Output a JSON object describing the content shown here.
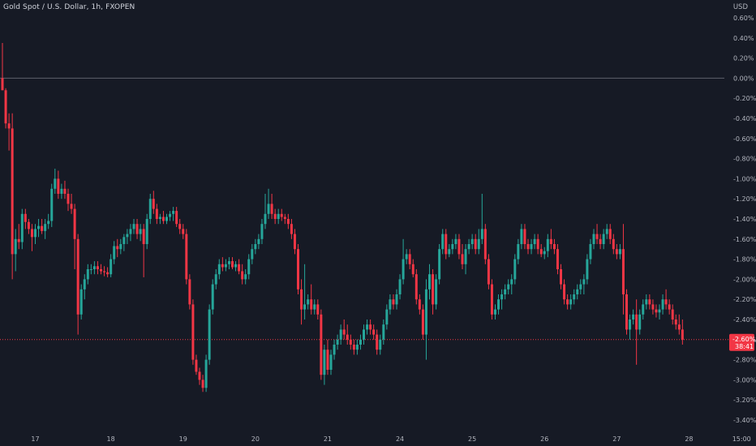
{
  "header": {
    "title": "Gold Spot / U.S. Dollar, 1h, FXOPEN",
    "currency": "USD"
  },
  "colors": {
    "background": "#161a25",
    "up": "#26a69a",
    "down": "#f23645",
    "text": "#b2b5be",
    "zero_line": "#5d606b",
    "price_line": "#f23645",
    "badge": "#f23645",
    "badge_text": "#ffffff"
  },
  "current": {
    "value_label": "-2.60%",
    "countdown": "38:41",
    "value": -2.6
  },
  "chart_data": {
    "type": "candlestick",
    "y_unit": "percent change",
    "ylim": [
      -3.5,
      0.65
    ],
    "y_scale": "linear",
    "grid": false,
    "ytick_labels": [
      "0.60%",
      "0.40%",
      "0.20%",
      "0.00%",
      "-0.20%",
      "-0.40%",
      "-0.60%",
      "-0.80%",
      "-1.00%",
      "-1.20%",
      "-1.40%",
      "-1.60%",
      "-1.80%",
      "-2.00%",
      "-2.20%",
      "-2.40%",
      "-2.60%",
      "-2.80%",
      "-3.00%",
      "-3.20%",
      "-3.40%"
    ],
    "ytick_values": [
      0.6,
      0.4,
      0.2,
      0,
      -0.2,
      -0.4,
      -0.6,
      -0.8,
      -1.0,
      -1.2,
      -1.4,
      -1.6,
      -1.8,
      -2.0,
      -2.2,
      -2.4,
      -2.6,
      -2.8,
      -3.0,
      -3.2,
      -3.4
    ],
    "xtick_labels": [
      "17",
      "18",
      "19",
      "20",
      "21",
      "24",
      "25",
      "26",
      "27",
      "28",
      "15:00"
    ],
    "xtick_index": [
      10,
      33,
      55,
      77,
      99,
      121,
      143,
      165,
      187,
      209,
      225
    ],
    "reference_lines": [
      {
        "name": "zero",
        "value": 0.0
      },
      {
        "name": "last-price",
        "value": -2.6
      }
    ],
    "candles": [
      [
        0.0,
        0.35,
        -0.12,
        -0.12
      ],
      [
        -0.12,
        -0.1,
        -0.5,
        -0.45
      ],
      [
        -0.45,
        -0.35,
        -0.72,
        -0.5
      ],
      [
        -0.5,
        -0.35,
        -2.0,
        -1.75
      ],
      [
        -1.75,
        -1.5,
        -1.92,
        -1.6
      ],
      [
        -1.6,
        -1.45,
        -1.7,
        -1.63
      ],
      [
        -1.63,
        -1.3,
        -1.7,
        -1.35
      ],
      [
        -1.35,
        -1.3,
        -1.5,
        -1.43
      ],
      [
        -1.43,
        -1.4,
        -1.55,
        -1.5
      ],
      [
        -1.5,
        -1.45,
        -1.72,
        -1.58
      ],
      [
        -1.58,
        -1.45,
        -1.65,
        -1.5
      ],
      [
        -1.5,
        -1.4,
        -1.58,
        -1.47
      ],
      [
        -1.47,
        -1.4,
        -1.55,
        -1.52
      ],
      [
        -1.52,
        -1.4,
        -1.6,
        -1.45
      ],
      [
        -1.45,
        -1.35,
        -1.5,
        -1.42
      ],
      [
        -1.42,
        -1.05,
        -1.48,
        -1.1
      ],
      [
        -1.1,
        -0.9,
        -1.15,
        -1.0
      ],
      [
        -1.0,
        -0.92,
        -1.2,
        -1.15
      ],
      [
        -1.15,
        -1.05,
        -1.2,
        -1.1
      ],
      [
        -1.1,
        -1.02,
        -1.2,
        -1.15
      ],
      [
        -1.15,
        -1.1,
        -1.32,
        -1.25
      ],
      [
        -1.25,
        -1.15,
        -1.35,
        -1.3
      ],
      [
        -1.3,
        -1.25,
        -1.9,
        -1.6
      ],
      [
        -1.6,
        -1.55,
        -2.55,
        -2.35
      ],
      [
        -2.35,
        -2.05,
        -2.4,
        -2.1
      ],
      [
        -2.1,
        -1.95,
        -2.2,
        -2.0
      ],
      [
        -2.0,
        -1.85,
        -2.05,
        -1.9
      ],
      [
        -1.9,
        -1.85,
        -1.95,
        -1.9
      ],
      [
        -1.9,
        -1.82,
        -1.95,
        -1.87
      ],
      [
        -1.87,
        -1.82,
        -1.95,
        -1.9
      ],
      [
        -1.9,
        -1.85,
        -1.95,
        -1.92
      ],
      [
        -1.92,
        -1.87,
        -1.97,
        -1.93
      ],
      [
        -1.93,
        -1.88,
        -1.98,
        -1.95
      ],
      [
        -1.95,
        -1.75,
        -1.98,
        -1.8
      ],
      [
        -1.8,
        -1.62,
        -1.85,
        -1.67
      ],
      [
        -1.67,
        -1.6,
        -1.78,
        -1.7
      ],
      [
        -1.7,
        -1.6,
        -1.75,
        -1.65
      ],
      [
        -1.65,
        -1.55,
        -1.72,
        -1.58
      ],
      [
        -1.58,
        -1.5,
        -1.65,
        -1.55
      ],
      [
        -1.55,
        -1.45,
        -1.62,
        -1.5
      ],
      [
        -1.5,
        -1.4,
        -1.55,
        -1.45
      ],
      [
        -1.45,
        -1.4,
        -1.6,
        -1.55
      ],
      [
        -1.55,
        -1.45,
        -1.62,
        -1.5
      ],
      [
        -1.5,
        -1.45,
        -1.98,
        -1.65
      ],
      [
        -1.65,
        -1.35,
        -1.7,
        -1.4
      ],
      [
        -1.4,
        -1.15,
        -1.45,
        -1.2
      ],
      [
        -1.2,
        -1.12,
        -1.35,
        -1.3
      ],
      [
        -1.3,
        -1.25,
        -1.45,
        -1.4
      ],
      [
        -1.4,
        -1.35,
        -1.45,
        -1.38
      ],
      [
        -1.38,
        -1.32,
        -1.45,
        -1.42
      ],
      [
        -1.42,
        -1.35,
        -1.45,
        -1.38
      ],
      [
        -1.38,
        -1.32,
        -1.42,
        -1.35
      ],
      [
        -1.35,
        -1.28,
        -1.42,
        -1.32
      ],
      [
        -1.32,
        -1.28,
        -1.48,
        -1.45
      ],
      [
        -1.45,
        -1.4,
        -1.55,
        -1.5
      ],
      [
        -1.5,
        -1.45,
        -1.6,
        -1.55
      ],
      [
        -1.55,
        -1.5,
        -2.05,
        -2.0
      ],
      [
        -2.0,
        -1.95,
        -2.3,
        -2.25
      ],
      [
        -2.25,
        -2.2,
        -2.85,
        -2.8
      ],
      [
        -2.8,
        -2.75,
        -2.95,
        -2.92
      ],
      [
        -2.92,
        -2.88,
        -3.05,
        -3.0
      ],
      [
        -3.0,
        -2.95,
        -3.12,
        -3.08
      ],
      [
        -3.08,
        -2.75,
        -3.12,
        -2.8
      ],
      [
        -2.8,
        -2.25,
        -2.85,
        -2.3
      ],
      [
        -2.3,
        -2.0,
        -2.35,
        -2.05
      ],
      [
        -2.05,
        -1.9,
        -2.1,
        -1.95
      ],
      [
        -1.95,
        -1.8,
        -2.0,
        -1.85
      ],
      [
        -1.85,
        -1.78,
        -1.92,
        -1.88
      ],
      [
        -1.88,
        -1.8,
        -1.92,
        -1.85
      ],
      [
        -1.85,
        -1.78,
        -1.9,
        -1.82
      ],
      [
        -1.82,
        -1.78,
        -1.9,
        -1.88
      ],
      [
        -1.88,
        -1.82,
        -1.92,
        -1.85
      ],
      [
        -1.85,
        -1.8,
        -1.95,
        -1.92
      ],
      [
        -1.92,
        -1.85,
        -2.05,
        -2.0
      ],
      [
        -2.0,
        -1.9,
        -2.05,
        -1.95
      ],
      [
        -1.95,
        -1.75,
        -2.0,
        -1.8
      ],
      [
        -1.8,
        -1.65,
        -1.85,
        -1.7
      ],
      [
        -1.7,
        -1.6,
        -1.75,
        -1.65
      ],
      [
        -1.65,
        -1.55,
        -1.7,
        -1.6
      ],
      [
        -1.6,
        -1.4,
        -1.65,
        -1.45
      ],
      [
        -1.45,
        -1.15,
        -1.5,
        -1.35
      ],
      [
        -1.35,
        -1.1,
        -1.4,
        -1.25
      ],
      [
        -1.25,
        -1.15,
        -1.4,
        -1.35
      ],
      [
        -1.35,
        -1.3,
        -1.45,
        -1.4
      ],
      [
        -1.4,
        -1.3,
        -1.45,
        -1.35
      ],
      [
        -1.35,
        -1.3,
        -1.42,
        -1.38
      ],
      [
        -1.38,
        -1.35,
        -1.45,
        -1.4
      ],
      [
        -1.4,
        -1.35,
        -1.5,
        -1.45
      ],
      [
        -1.45,
        -1.4,
        -1.6,
        -1.55
      ],
      [
        -1.55,
        -1.5,
        -1.75,
        -1.7
      ],
      [
        -1.7,
        -1.65,
        -2.15,
        -2.1
      ],
      [
        -2.1,
        -2.0,
        -2.45,
        -2.3
      ],
      [
        -2.3,
        -1.85,
        -2.4,
        -2.25
      ],
      [
        -2.25,
        -2.15,
        -2.3,
        -2.2
      ],
      [
        -2.2,
        -2.05,
        -2.35,
        -2.3
      ],
      [
        -2.3,
        -2.2,
        -2.35,
        -2.25
      ],
      [
        -2.25,
        -2.2,
        -2.4,
        -2.35
      ],
      [
        -2.35,
        -2.3,
        -3.0,
        -2.95
      ],
      [
        -2.95,
        -2.65,
        -3.05,
        -2.7
      ],
      [
        -2.7,
        -2.6,
        -2.95,
        -2.9
      ],
      [
        -2.9,
        -2.7,
        -2.95,
        -2.75
      ],
      [
        -2.75,
        -2.6,
        -2.8,
        -2.65
      ],
      [
        -2.65,
        -2.55,
        -2.7,
        -2.6
      ],
      [
        -2.6,
        -2.45,
        -2.65,
        -2.5
      ],
      [
        -2.5,
        -2.4,
        -2.6,
        -2.55
      ],
      [
        -2.55,
        -2.45,
        -2.65,
        -2.6
      ],
      [
        -2.6,
        -2.55,
        -2.7,
        -2.65
      ],
      [
        -2.65,
        -2.6,
        -2.75,
        -2.7
      ],
      [
        -2.7,
        -2.6,
        -2.75,
        -2.65
      ],
      [
        -2.65,
        -2.55,
        -2.7,
        -2.6
      ],
      [
        -2.6,
        -2.45,
        -2.65,
        -2.5
      ],
      [
        -2.5,
        -2.4,
        -2.55,
        -2.45
      ],
      [
        -2.45,
        -2.4,
        -2.55,
        -2.5
      ],
      [
        -2.5,
        -2.45,
        -2.6,
        -2.55
      ],
      [
        -2.55,
        -2.5,
        -2.75,
        -2.7
      ],
      [
        -2.7,
        -2.55,
        -2.75,
        -2.6
      ],
      [
        -2.6,
        -2.4,
        -2.65,
        -2.45
      ],
      [
        -2.45,
        -2.25,
        -2.5,
        -2.3
      ],
      [
        -2.3,
        -2.15,
        -2.35,
        -2.2
      ],
      [
        -2.2,
        -2.15,
        -2.3,
        -2.25
      ],
      [
        -2.25,
        -2.1,
        -2.3,
        -2.15
      ],
      [
        -2.15,
        -1.95,
        -2.2,
        -2.0
      ],
      [
        -2.0,
        -1.6,
        -2.05,
        -1.8
      ],
      [
        -1.8,
        -1.7,
        -1.85,
        -1.75
      ],
      [
        -1.75,
        -1.7,
        -1.9,
        -1.85
      ],
      [
        -1.85,
        -1.8,
        -1.98,
        -1.95
      ],
      [
        -1.95,
        -1.9,
        -2.25,
        -2.2
      ],
      [
        -2.2,
        -2.15,
        -2.35,
        -2.3
      ],
      [
        -2.3,
        -2.25,
        -2.6,
        -2.55
      ],
      [
        -2.55,
        -2.0,
        -2.8,
        -2.1
      ],
      [
        -2.1,
        -1.85,
        -2.2,
        -1.95
      ],
      [
        -1.95,
        -1.9,
        -2.35,
        -2.25
      ],
      [
        -2.25,
        -1.95,
        -2.3,
        -2.0
      ],
      [
        -2.0,
        -1.65,
        -2.05,
        -1.7
      ],
      [
        -1.7,
        -1.5,
        -1.75,
        -1.55
      ],
      [
        -1.55,
        -1.5,
        -1.8,
        -1.75
      ],
      [
        -1.75,
        -1.65,
        -1.78,
        -1.7
      ],
      [
        -1.7,
        -1.6,
        -1.75,
        -1.65
      ],
      [
        -1.65,
        -1.55,
        -1.7,
        -1.6
      ],
      [
        -1.6,
        -1.55,
        -1.8,
        -1.75
      ],
      [
        -1.75,
        -1.65,
        -1.9,
        -1.85
      ],
      [
        -1.85,
        -1.65,
        -1.95,
        -1.7
      ],
      [
        -1.7,
        -1.6,
        -1.75,
        -1.65
      ],
      [
        -1.65,
        -1.55,
        -1.7,
        -1.6
      ],
      [
        -1.6,
        -1.55,
        -1.75,
        -1.7
      ],
      [
        -1.7,
        -1.5,
        -1.75,
        -1.6
      ],
      [
        -1.6,
        -1.15,
        -1.65,
        -1.5
      ],
      [
        -1.5,
        -1.45,
        -1.85,
        -1.8
      ],
      [
        -1.8,
        -1.75,
        -2.1,
        -2.05
      ],
      [
        -2.05,
        -2.0,
        -2.4,
        -2.35
      ],
      [
        -2.35,
        -2.25,
        -2.4,
        -2.3
      ],
      [
        -2.3,
        -2.15,
        -2.35,
        -2.2
      ],
      [
        -2.2,
        -2.1,
        -2.3,
        -2.15
      ],
      [
        -2.15,
        -2.05,
        -2.2,
        -2.1
      ],
      [
        -2.1,
        -2.0,
        -2.15,
        -2.05
      ],
      [
        -2.05,
        -1.95,
        -2.15,
        -2.0
      ],
      [
        -2.0,
        -1.75,
        -2.05,
        -1.8
      ],
      [
        -1.8,
        -1.6,
        -1.85,
        -1.65
      ],
      [
        -1.65,
        -1.45,
        -1.7,
        -1.5
      ],
      [
        -1.5,
        -1.45,
        -1.7,
        -1.65
      ],
      [
        -1.65,
        -1.6,
        -1.75,
        -1.7
      ],
      [
        -1.7,
        -1.6,
        -1.75,
        -1.65
      ],
      [
        -1.65,
        -1.55,
        -1.7,
        -1.6
      ],
      [
        -1.6,
        -1.55,
        -1.75,
        -1.7
      ],
      [
        -1.7,
        -1.65,
        -1.78,
        -1.75
      ],
      [
        -1.75,
        -1.68,
        -1.8,
        -1.72
      ],
      [
        -1.72,
        -1.55,
        -1.78,
        -1.6
      ],
      [
        -1.6,
        -1.5,
        -1.7,
        -1.65
      ],
      [
        -1.65,
        -1.6,
        -1.75,
        -1.7
      ],
      [
        -1.7,
        -1.65,
        -1.95,
        -1.9
      ],
      [
        -1.9,
        -1.85,
        -2.1,
        -2.05
      ],
      [
        -2.05,
        -2.0,
        -2.25,
        -2.2
      ],
      [
        -2.2,
        -2.15,
        -2.3,
        -2.25
      ],
      [
        -2.25,
        -2.15,
        -2.3,
        -2.2
      ],
      [
        -2.2,
        -2.1,
        -2.25,
        -2.15
      ],
      [
        -2.15,
        -2.05,
        -2.2,
        -2.1
      ],
      [
        -2.1,
        -2.0,
        -2.15,
        -2.05
      ],
      [
        -2.05,
        -1.95,
        -2.15,
        -2.0
      ],
      [
        -2.0,
        -1.75,
        -2.05,
        -1.8
      ],
      [
        -1.8,
        -1.6,
        -1.85,
        -1.65
      ],
      [
        -1.65,
        -1.5,
        -1.7,
        -1.55
      ],
      [
        -1.55,
        -1.45,
        -1.65,
        -1.6
      ],
      [
        -1.6,
        -1.55,
        -1.7,
        -1.65
      ],
      [
        -1.65,
        -1.5,
        -1.7,
        -1.55
      ],
      [
        -1.55,
        -1.45,
        -1.6,
        -1.5
      ],
      [
        -1.5,
        -1.45,
        -1.65,
        -1.6
      ],
      [
        -1.6,
        -1.55,
        -1.75,
        -1.7
      ],
      [
        -1.7,
        -1.65,
        -1.8,
        -1.75
      ],
      [
        -1.75,
        -1.65,
        -1.8,
        -1.7
      ],
      [
        -1.7,
        -1.45,
        -2.35,
        -2.15
      ],
      [
        -2.15,
        -2.1,
        -2.55,
        -2.5
      ],
      [
        -2.5,
        -2.35,
        -2.6,
        -2.4
      ],
      [
        -2.4,
        -2.3,
        -2.45,
        -2.35
      ],
      [
        -2.35,
        -2.2,
        -2.85,
        -2.5
      ],
      [
        -2.5,
        -2.3,
        -2.55,
        -2.35
      ],
      [
        -2.35,
        -2.2,
        -2.4,
        -2.25
      ],
      [
        -2.25,
        -2.15,
        -2.3,
        -2.2
      ],
      [
        -2.2,
        -2.15,
        -2.3,
        -2.25
      ],
      [
        -2.25,
        -2.2,
        -2.35,
        -2.3
      ],
      [
        -2.3,
        -2.25,
        -2.38,
        -2.33
      ],
      [
        -2.33,
        -2.25,
        -2.4,
        -2.3
      ],
      [
        -2.3,
        -2.15,
        -2.35,
        -2.2
      ],
      [
        -2.2,
        -2.1,
        -2.3,
        -2.25
      ],
      [
        -2.25,
        -2.2,
        -2.35,
        -2.3
      ],
      [
        -2.3,
        -2.25,
        -2.45,
        -2.4
      ],
      [
        -2.4,
        -2.35,
        -2.5,
        -2.45
      ],
      [
        -2.45,
        -2.35,
        -2.55,
        -2.5
      ],
      [
        -2.5,
        -2.4,
        -2.65,
        -2.6
      ]
    ]
  }
}
